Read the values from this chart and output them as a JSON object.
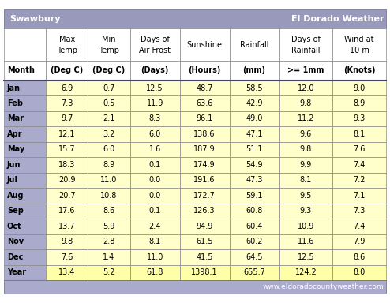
{
  "title_left": "Swawbury",
  "title_right": "El Dorado Weather",
  "title_bg": "#9999bb",
  "title_fg": "white",
  "header_row1": [
    "",
    "Max\nTemp",
    "Min\nTemp",
    "Days of\nAir Frost",
    "Sunshine",
    "Rainfall",
    "Days of\nRainfall",
    "Wind at\n10 m"
  ],
  "header_row2": [
    "Month",
    "(Deg C)",
    "(Deg C)",
    "(Days)",
    "(Hours)",
    "(mm)",
    ">= 1mm",
    "(Knots)"
  ],
  "col_alignments": [
    "left",
    "center",
    "center",
    "center",
    "center",
    "center",
    "center",
    "center"
  ],
  "rows": [
    [
      "Jan",
      "6.9",
      "0.7",
      "12.5",
      "48.7",
      "58.5",
      "12.0",
      "9.0"
    ],
    [
      "Feb",
      "7.3",
      "0.5",
      "11.9",
      "63.6",
      "42.9",
      "9.8",
      "8.9"
    ],
    [
      "Mar",
      "9.7",
      "2.1",
      "8.3",
      "96.1",
      "49.0",
      "11.2",
      "9.3"
    ],
    [
      "Apr",
      "12.1",
      "3.2",
      "6.0",
      "138.6",
      "47.1",
      "9.6",
      "8.1"
    ],
    [
      "May",
      "15.7",
      "6.0",
      "1.6",
      "187.9",
      "51.1",
      "9.8",
      "7.6"
    ],
    [
      "Jun",
      "18.3",
      "8.9",
      "0.1",
      "174.9",
      "54.9",
      "9.9",
      "7.4"
    ],
    [
      "Jul",
      "20.9",
      "11.0",
      "0.0",
      "191.6",
      "47.3",
      "8.1",
      "7.2"
    ],
    [
      "Aug",
      "20.7",
      "10.8",
      "0.0",
      "172.7",
      "59.1",
      "9.5",
      "7.1"
    ],
    [
      "Sep",
      "17.6",
      "8.6",
      "0.1",
      "126.3",
      "60.8",
      "9.3",
      "7.3"
    ],
    [
      "Oct",
      "13.7",
      "5.9",
      "2.4",
      "94.9",
      "60.4",
      "10.9",
      "7.4"
    ],
    [
      "Nov",
      "9.8",
      "2.8",
      "8.1",
      "61.5",
      "60.2",
      "11.6",
      "7.9"
    ],
    [
      "Dec",
      "7.6",
      "1.4",
      "11.0",
      "41.5",
      "64.5",
      "12.5",
      "8.6"
    ],
    [
      "Year",
      "13.4",
      "5.2",
      "61.8",
      "1398.1",
      "655.7",
      "124.2",
      "8.0"
    ]
  ],
  "month_col_bg": "#aaaacc",
  "data_col_bg": "#ffffcc",
  "year_row_bg": "#ffffaa",
  "header_bg": "white",
  "alt_row_bg": "#ffffff",
  "footer_text": "www.eldoradocountyweather.com",
  "footer_bg": "#aaaacc",
  "footer_fg": "white"
}
